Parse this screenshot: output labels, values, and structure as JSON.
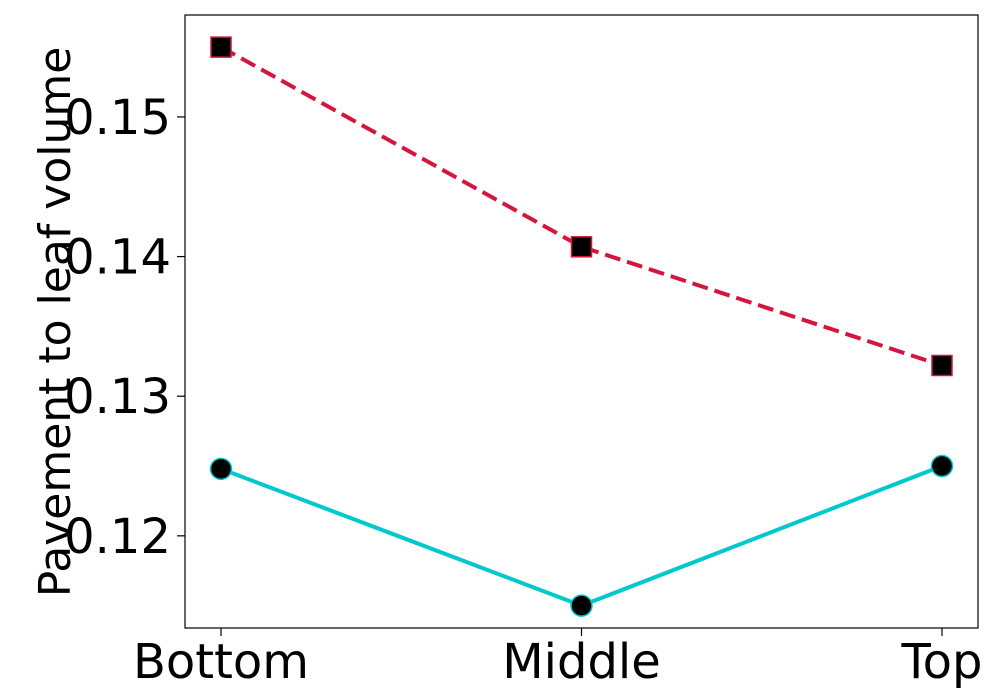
{
  "chart_data": {
    "type": "line",
    "title": "",
    "xlabel": "",
    "ylabel": "Pavement to leaf volume",
    "categories": [
      "Bottom",
      "Middle",
      "Top"
    ],
    "ylim": [
      0.1134,
      0.1573
    ],
    "yticks": [
      0.12,
      0.13,
      0.14,
      0.15
    ],
    "ytick_labels": [
      "0.12",
      "0.13",
      "0.14",
      "0.15"
    ],
    "grid": false,
    "legend": "none",
    "series": [
      {
        "values": [
          0.155,
          0.1407,
          0.1322
        ],
        "color": "#d4163f",
        "line_style": "dashed",
        "marker": "square",
        "marker_fill": "#000000",
        "marker_edge": "#d4163f"
      },
      {
        "values": [
          0.1248,
          0.115,
          0.125
        ],
        "color": "#00c8cc",
        "line_style": "solid",
        "marker": "circle",
        "marker_fill": "#000000",
        "marker_edge": "#00c8cc"
      }
    ]
  }
}
